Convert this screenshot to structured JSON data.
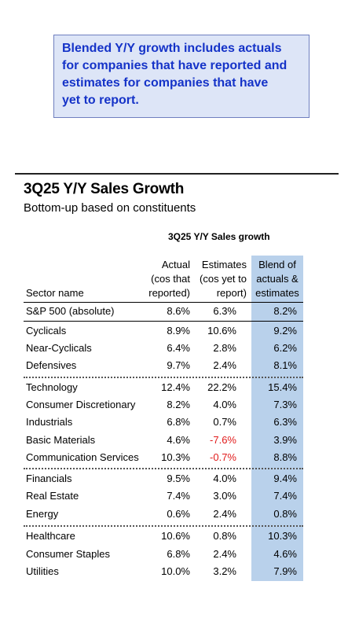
{
  "callout": {
    "lines": [
      "Blended Y/Y growth includes actuals",
      "for companies that have reported and",
      "estimates for companies that have",
      "yet to report."
    ]
  },
  "title": "3Q25 Y/Y Sales Growth",
  "subtitle": "Bottom-up based on constituents",
  "table": {
    "group_header": "3Q25 Y/Y Sales growth",
    "columns": {
      "sector": "Sector name",
      "actual": [
        "Actual",
        "(cos that",
        "reported)"
      ],
      "estimates": [
        "Estimates",
        "(cos yet to",
        "report)"
      ],
      "blend": [
        "Blend of",
        "actuals &",
        "estimates"
      ]
    },
    "rows": [
      {
        "name": "S&P 500 (absolute)",
        "actual": "8.6%",
        "estimates": "6.3%",
        "blend": "8.2%"
      },
      {
        "name": "Cyclicals",
        "actual": "8.9%",
        "estimates": "10.6%",
        "blend": "9.2%"
      },
      {
        "name": "Near-Cyclicals",
        "actual": "6.4%",
        "estimates": "2.8%",
        "blend": "6.2%"
      },
      {
        "name": "Defensives",
        "actual": "9.7%",
        "estimates": "2.4%",
        "blend": "8.1%"
      },
      {
        "name": "Technology",
        "actual": "12.4%",
        "estimates": "22.2%",
        "blend": "15.4%"
      },
      {
        "name": "Consumer Discretionary",
        "actual": "8.2%",
        "estimates": "4.0%",
        "blend": "7.3%"
      },
      {
        "name": "Industrials",
        "actual": "6.8%",
        "estimates": "0.7%",
        "blend": "6.3%"
      },
      {
        "name": "Basic Materials",
        "actual": "4.6%",
        "estimates": "-7.6%",
        "blend": "3.9%"
      },
      {
        "name": "Communication Services",
        "actual": "10.3%",
        "estimates": "-0.7%",
        "blend": "8.8%"
      },
      {
        "name": "Financials",
        "actual": "9.5%",
        "estimates": "4.0%",
        "blend": "9.4%"
      },
      {
        "name": "Real Estate",
        "actual": "7.4%",
        "estimates": "3.0%",
        "blend": "7.4%"
      },
      {
        "name": "Energy",
        "actual": "0.6%",
        "estimates": "2.4%",
        "blend": "0.8%"
      },
      {
        "name": "Healthcare",
        "actual": "10.6%",
        "estimates": "0.8%",
        "blend": "10.3%"
      },
      {
        "name": "Consumer Staples",
        "actual": "6.8%",
        "estimates": "2.4%",
        "blend": "4.6%"
      },
      {
        "name": "Utilities",
        "actual": "10.0%",
        "estimates": "3.2%",
        "blend": "7.9%"
      }
    ]
  },
  "colors": {
    "callout_text": "#1533c8",
    "callout_bg": "#dde5f7",
    "blend_column_bg": "#b9d1eb",
    "negative_value": "#e11b1b"
  }
}
